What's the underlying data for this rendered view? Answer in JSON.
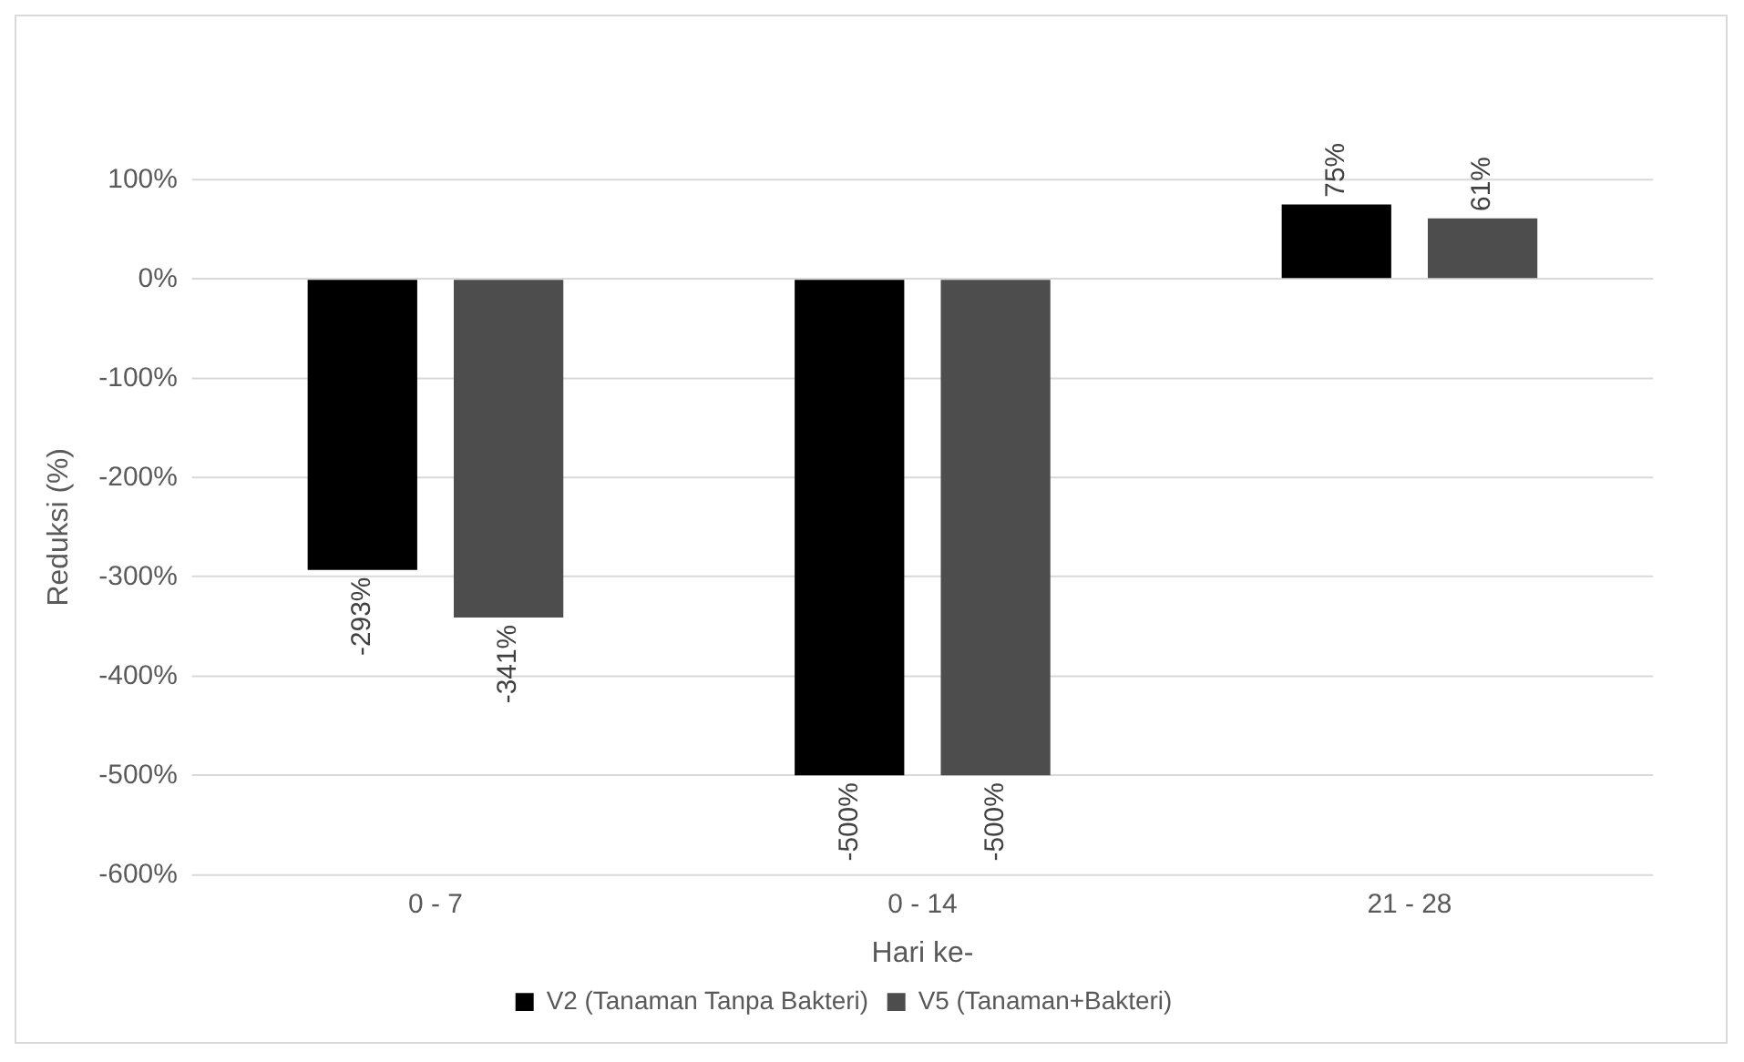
{
  "chart_data": {
    "type": "bar",
    "xlabel": "Hari ke-",
    "ylabel": "Reduksi (%)",
    "categories": [
      "0 - 7",
      "0 - 14",
      "21 - 28"
    ],
    "series": [
      {
        "name": "V2 (Tanaman Tanpa Bakteri)",
        "color": "#000000",
        "values": [
          -293,
          -500,
          75
        ],
        "value_labels": [
          "-293%",
          "-500%",
          "75%"
        ]
      },
      {
        "name": "V5 (Tanaman+Bakteri)",
        "color": "#4d4d4d",
        "values": [
          -341,
          -500,
          61
        ],
        "value_labels": [
          "-341%",
          "-500%",
          "61%"
        ]
      }
    ],
    "ylim": [
      -600,
      100
    ],
    "yticks": [
      {
        "value": -600,
        "label": "-600%"
      },
      {
        "value": -500,
        "label": "-500%"
      },
      {
        "value": -400,
        "label": "-400%"
      },
      {
        "value": -300,
        "label": "-300%"
      },
      {
        "value": -200,
        "label": "-200%"
      },
      {
        "value": -100,
        "label": "-100%"
      },
      {
        "value": 0,
        "label": "0%"
      },
      {
        "value": 100,
        "label": "100%"
      }
    ],
    "grid": "y",
    "legend": "bottom"
  }
}
